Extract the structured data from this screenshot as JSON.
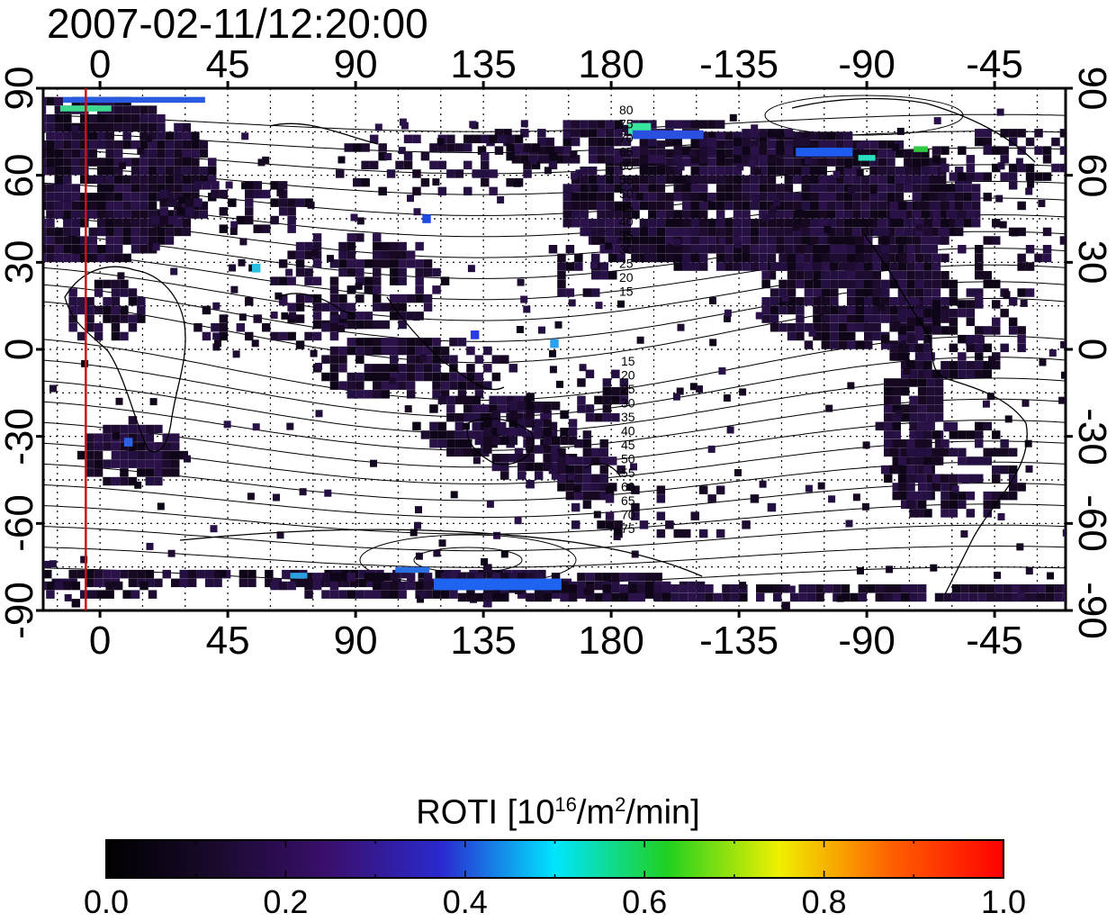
{
  "title": "2007-02-11/12:20:00",
  "axes": {
    "top_ticks": [
      "0",
      "45",
      "90",
      "135",
      "180",
      "-135",
      "-90",
      "-45"
    ],
    "bottom_ticks": [
      "0",
      "45",
      "90",
      "135",
      "180",
      "-135",
      "-90",
      "-45"
    ],
    "left_ticks": [
      "90",
      "60",
      "30",
      "0",
      "-30",
      "-60",
      "-90"
    ],
    "right_ticks": [
      "90",
      "60",
      "30",
      "0",
      "-30",
      "-60",
      "-90"
    ]
  },
  "map": {
    "projection": "equirectangular",
    "lon_range": [
      -20,
      340
    ],
    "lat_range": [
      -90,
      90
    ],
    "grid": "dotted 15-degree",
    "marker_longitude": -5,
    "marker_color": "#d01010",
    "contour_labels_north": [
      "80",
      "75",
      "70",
      "65",
      "60",
      "55",
      "50",
      "45",
      "40",
      "35",
      "30",
      "25",
      "20",
      "15"
    ],
    "contour_labels_south": [
      "15",
      "20",
      "25",
      "30",
      "35",
      "40",
      "45",
      "50",
      "55",
      "60",
      "65",
      "70",
      "75"
    ]
  },
  "colorbar": {
    "title_main": "ROTI  [10",
    "title_exp1": "16",
    "title_mid": "/m",
    "title_exp2": "2",
    "title_end": "/min]",
    "min": 0.0,
    "max": 1.0,
    "tick_labels": [
      "0.0",
      "0.2",
      "0.4",
      "0.6",
      "0.8",
      "1.0"
    ],
    "colors": [
      "#000000",
      "#1a0a2e",
      "#3a0f6e",
      "#2a2ad0",
      "#00e5ff",
      "#20d020",
      "#f0f000",
      "#ff6000",
      "#ff0000"
    ]
  }
}
